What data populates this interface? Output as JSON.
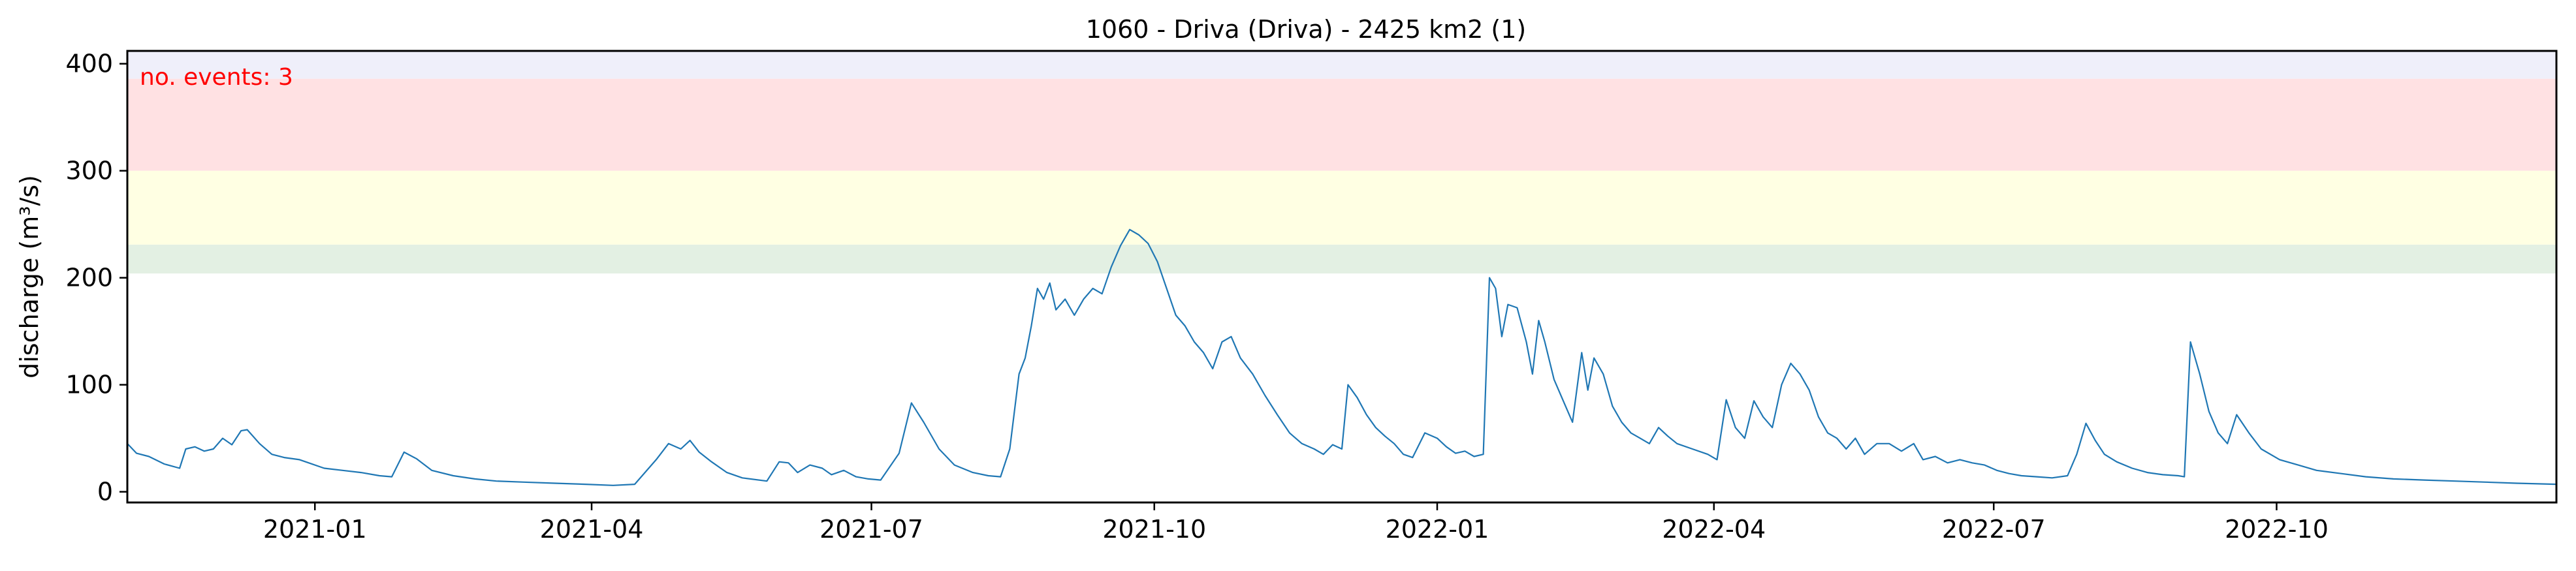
{
  "chart_data": {
    "type": "line",
    "title": "1060 - Driva (Driva) - 2425 km2 (1)",
    "xlabel": "",
    "ylabel": "discharge (m³/s)",
    "xlim": [
      "2020-11-01",
      "2022-12-31"
    ],
    "ylim": [
      -10,
      412
    ],
    "y_ticks": [
      0,
      100,
      200,
      300,
      400
    ],
    "x_ticks": [
      {
        "label": "2021-01",
        "date": "2021-01-01"
      },
      {
        "label": "2021-04",
        "date": "2021-04-01"
      },
      {
        "label": "2021-07",
        "date": "2021-07-01"
      },
      {
        "label": "2021-10",
        "date": "2021-10-01"
      },
      {
        "label": "2022-01",
        "date": "2022-01-01"
      },
      {
        "label": "2022-04",
        "date": "2022-04-01"
      },
      {
        "label": "2022-07",
        "date": "2022-07-01"
      },
      {
        "label": "2022-10",
        "date": "2022-10-01"
      }
    ],
    "grid": false,
    "bands": [
      {
        "from": 204,
        "to": 231,
        "color": "#e3f0e3"
      },
      {
        "from": 231,
        "to": 300,
        "color": "#ffffe3"
      },
      {
        "from": 300,
        "to": 386,
        "color": "#ffe1e3"
      },
      {
        "from": 386,
        "to": 412,
        "color": "#efeffa"
      }
    ],
    "annotation": {
      "text": "no. events: 3",
      "color": "#ff0000"
    },
    "series": [
      {
        "color": "#1f77b4",
        "points": [
          [
            "2020-11-01",
            45
          ],
          [
            "2020-11-04",
            36
          ],
          [
            "2020-11-08",
            33
          ],
          [
            "2020-11-13",
            26
          ],
          [
            "2020-11-18",
            22
          ],
          [
            "2020-11-20",
            40
          ],
          [
            "2020-11-23",
            42
          ],
          [
            "2020-11-26",
            38
          ],
          [
            "2020-11-29",
            40
          ],
          [
            "2020-12-02",
            50
          ],
          [
            "2020-12-05",
            44
          ],
          [
            "2020-12-08",
            57
          ],
          [
            "2020-12-10",
            58
          ],
          [
            "2020-12-14",
            45
          ],
          [
            "2020-12-18",
            35
          ],
          [
            "2020-12-22",
            32
          ],
          [
            "2020-12-27",
            30
          ],
          [
            "2020-12-30",
            27
          ],
          [
            "2021-01-04",
            22
          ],
          [
            "2021-01-10",
            20
          ],
          [
            "2021-01-16",
            18
          ],
          [
            "2021-01-22",
            15
          ],
          [
            "2021-01-26",
            14
          ],
          [
            "2021-01-30",
            37
          ],
          [
            "2021-02-03",
            31
          ],
          [
            "2021-02-08",
            20
          ],
          [
            "2021-02-15",
            15
          ],
          [
            "2021-02-22",
            12
          ],
          [
            "2021-03-01",
            10
          ],
          [
            "2021-03-10",
            9
          ],
          [
            "2021-03-20",
            8
          ],
          [
            "2021-03-30",
            7
          ],
          [
            "2021-04-08",
            6
          ],
          [
            "2021-04-15",
            7
          ],
          [
            "2021-04-22",
            30
          ],
          [
            "2021-04-26",
            45
          ],
          [
            "2021-04-30",
            40
          ],
          [
            "2021-05-03",
            48
          ],
          [
            "2021-05-06",
            37
          ],
          [
            "2021-05-10",
            28
          ],
          [
            "2021-05-15",
            18
          ],
          [
            "2021-05-20",
            13
          ],
          [
            "2021-05-28",
            10
          ],
          [
            "2021-06-01",
            28
          ],
          [
            "2021-06-04",
            27
          ],
          [
            "2021-06-07",
            18
          ],
          [
            "2021-06-11",
            25
          ],
          [
            "2021-06-15",
            22
          ],
          [
            "2021-06-18",
            16
          ],
          [
            "2021-06-22",
            20
          ],
          [
            "2021-06-26",
            14
          ],
          [
            "2021-06-30",
            12
          ],
          [
            "2021-07-04",
            11
          ],
          [
            "2021-07-10",
            36
          ],
          [
            "2021-07-14",
            83
          ],
          [
            "2021-07-18",
            65
          ],
          [
            "2021-07-23",
            40
          ],
          [
            "2021-07-28",
            25
          ],
          [
            "2021-08-03",
            18
          ],
          [
            "2021-08-08",
            15
          ],
          [
            "2021-08-12",
            14
          ],
          [
            "2021-08-15",
            40
          ],
          [
            "2021-08-18",
            110
          ],
          [
            "2021-08-20",
            125
          ],
          [
            "2021-08-22",
            155
          ],
          [
            "2021-08-24",
            190
          ],
          [
            "2021-08-26",
            180
          ],
          [
            "2021-08-28",
            195
          ],
          [
            "2021-08-30",
            170
          ],
          [
            "2021-09-02",
            180
          ],
          [
            "2021-09-05",
            165
          ],
          [
            "2021-09-08",
            180
          ],
          [
            "2021-09-11",
            190
          ],
          [
            "2021-09-14",
            185
          ],
          [
            "2021-09-17",
            210
          ],
          [
            "2021-09-20",
            230
          ],
          [
            "2021-09-23",
            245
          ],
          [
            "2021-09-26",
            240
          ],
          [
            "2021-09-29",
            232
          ],
          [
            "2021-10-02",
            215
          ],
          [
            "2021-10-05",
            190
          ],
          [
            "2021-10-08",
            165
          ],
          [
            "2021-10-11",
            155
          ],
          [
            "2021-10-14",
            140
          ],
          [
            "2021-10-17",
            130
          ],
          [
            "2021-10-20",
            115
          ],
          [
            "2021-10-23",
            140
          ],
          [
            "2021-10-26",
            145
          ],
          [
            "2021-10-29",
            125
          ],
          [
            "2021-11-02",
            110
          ],
          [
            "2021-11-06",
            90
          ],
          [
            "2021-11-10",
            72
          ],
          [
            "2021-11-14",
            55
          ],
          [
            "2021-11-18",
            45
          ],
          [
            "2021-11-22",
            40
          ],
          [
            "2021-11-25",
            35
          ],
          [
            "2021-11-28",
            44
          ],
          [
            "2021-12-01",
            40
          ],
          [
            "2021-12-03",
            100
          ],
          [
            "2021-12-06",
            88
          ],
          [
            "2021-12-09",
            72
          ],
          [
            "2021-12-12",
            60
          ],
          [
            "2021-12-15",
            52
          ],
          [
            "2021-12-18",
            45
          ],
          [
            "2021-12-21",
            35
          ],
          [
            "2021-12-24",
            32
          ],
          [
            "2021-12-28",
            55
          ],
          [
            "2022-01-01",
            50
          ],
          [
            "2022-01-04",
            42
          ],
          [
            "2022-01-07",
            36
          ],
          [
            "2022-01-10",
            38
          ],
          [
            "2022-01-13",
            33
          ],
          [
            "2022-01-16",
            35
          ],
          [
            "2022-01-18",
            200
          ],
          [
            "2022-01-20",
            190
          ],
          [
            "2022-01-22",
            145
          ],
          [
            "2022-01-24",
            175
          ],
          [
            "2022-01-27",
            172
          ],
          [
            "2022-01-30",
            140
          ],
          [
            "2022-02-01",
            110
          ],
          [
            "2022-02-03",
            160
          ],
          [
            "2022-02-05",
            140
          ],
          [
            "2022-02-08",
            105
          ],
          [
            "2022-02-11",
            85
          ],
          [
            "2022-02-14",
            65
          ],
          [
            "2022-02-17",
            130
          ],
          [
            "2022-02-19",
            95
          ],
          [
            "2022-02-21",
            125
          ],
          [
            "2022-02-24",
            110
          ],
          [
            "2022-02-27",
            80
          ],
          [
            "2022-03-02",
            65
          ],
          [
            "2022-03-05",
            55
          ],
          [
            "2022-03-08",
            50
          ],
          [
            "2022-03-11",
            45
          ],
          [
            "2022-03-14",
            60
          ],
          [
            "2022-03-17",
            52
          ],
          [
            "2022-03-20",
            45
          ],
          [
            "2022-03-25",
            40
          ],
          [
            "2022-03-30",
            35
          ],
          [
            "2022-04-02",
            30
          ],
          [
            "2022-04-05",
            86
          ],
          [
            "2022-04-08",
            60
          ],
          [
            "2022-04-11",
            50
          ],
          [
            "2022-04-14",
            85
          ],
          [
            "2022-04-17",
            70
          ],
          [
            "2022-04-20",
            60
          ],
          [
            "2022-04-23",
            100
          ],
          [
            "2022-04-26",
            120
          ],
          [
            "2022-04-29",
            110
          ],
          [
            "2022-05-02",
            95
          ],
          [
            "2022-05-05",
            70
          ],
          [
            "2022-05-08",
            55
          ],
          [
            "2022-05-11",
            50
          ],
          [
            "2022-05-14",
            40
          ],
          [
            "2022-05-17",
            50
          ],
          [
            "2022-05-20",
            35
          ],
          [
            "2022-05-24",
            45
          ],
          [
            "2022-05-28",
            45
          ],
          [
            "2022-06-01",
            38
          ],
          [
            "2022-06-05",
            45
          ],
          [
            "2022-06-08",
            30
          ],
          [
            "2022-06-12",
            33
          ],
          [
            "2022-06-16",
            27
          ],
          [
            "2022-06-20",
            30
          ],
          [
            "2022-06-24",
            27
          ],
          [
            "2022-06-28",
            25
          ],
          [
            "2022-07-02",
            20
          ],
          [
            "2022-07-06",
            17
          ],
          [
            "2022-07-10",
            15
          ],
          [
            "2022-07-15",
            14
          ],
          [
            "2022-07-20",
            13
          ],
          [
            "2022-07-25",
            15
          ],
          [
            "2022-07-28",
            35
          ],
          [
            "2022-07-31",
            64
          ],
          [
            "2022-08-03",
            48
          ],
          [
            "2022-08-06",
            35
          ],
          [
            "2022-08-10",
            28
          ],
          [
            "2022-08-15",
            22
          ],
          [
            "2022-08-20",
            18
          ],
          [
            "2022-08-25",
            16
          ],
          [
            "2022-08-30",
            15
          ],
          [
            "2022-09-01",
            14
          ],
          [
            "2022-09-03",
            140
          ],
          [
            "2022-09-06",
            110
          ],
          [
            "2022-09-09",
            75
          ],
          [
            "2022-09-12",
            55
          ],
          [
            "2022-09-15",
            45
          ],
          [
            "2022-09-18",
            72
          ],
          [
            "2022-09-22",
            55
          ],
          [
            "2022-09-26",
            40
          ],
          [
            "2022-10-02",
            30
          ],
          [
            "2022-10-08",
            25
          ],
          [
            "2022-10-14",
            20
          ],
          [
            "2022-10-22",
            17
          ],
          [
            "2022-10-30",
            14
          ],
          [
            "2022-11-08",
            12
          ],
          [
            "2022-11-18",
            11
          ],
          [
            "2022-11-28",
            10
          ],
          [
            "2022-12-08",
            9
          ],
          [
            "2022-12-18",
            8
          ],
          [
            "2022-12-31",
            7
          ]
        ]
      }
    ],
    "events": []
  }
}
